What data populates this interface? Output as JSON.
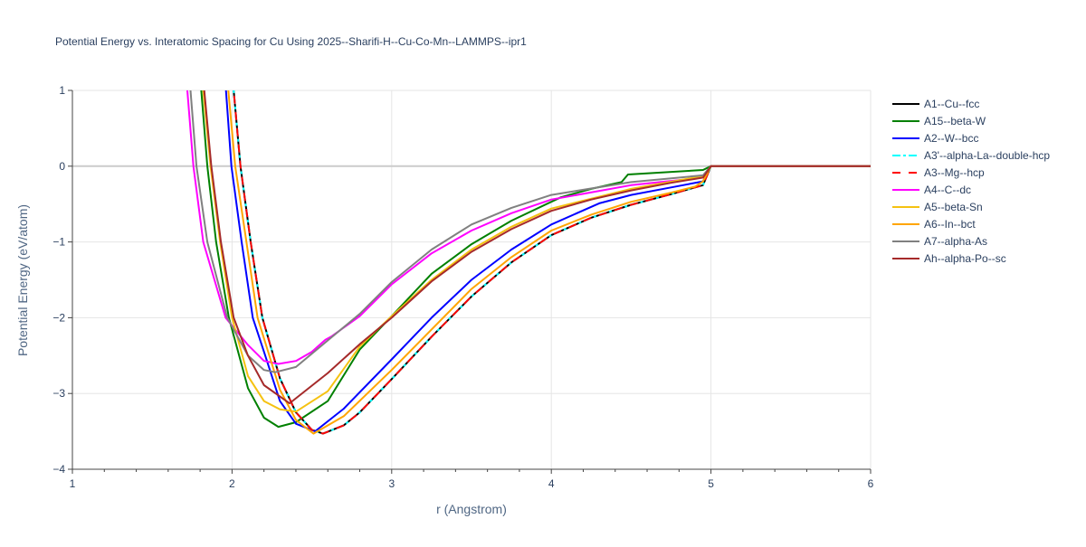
{
  "chart_data": {
    "type": "line",
    "title": "Potential Energy vs. Interatomic Spacing for Cu Using 2025--Sharifi-H--Cu-Co-Mn--LAMMPS--ipr1",
    "xlabel": "r (Angstrom)",
    "ylabel": "Potential Energy (eV/atom)",
    "xlim": [
      1,
      6
    ],
    "ylim": [
      -4,
      1
    ],
    "xticks": [
      1,
      2,
      3,
      4,
      5,
      6
    ],
    "yticks": [
      1,
      0,
      -1,
      -2,
      -3,
      -4
    ],
    "grid": true,
    "legend_position": "right",
    "series": [
      {
        "name": "A1--Cu--fcc",
        "color": "#000000",
        "dash": "solid",
        "points": [
          [
            1.97,
            2
          ],
          [
            2.01,
            1
          ],
          [
            2.053,
            0
          ],
          [
            2.117,
            -1
          ],
          [
            2.19,
            -2
          ],
          [
            2.3,
            -2.8
          ],
          [
            2.4,
            -3.25
          ],
          [
            2.5,
            -3.48
          ],
          [
            2.57,
            -3.53
          ],
          [
            2.7,
            -3.42
          ],
          [
            2.8,
            -3.25
          ],
          [
            3.0,
            -2.81
          ],
          [
            3.25,
            -2.25
          ],
          [
            3.5,
            -1.72
          ],
          [
            3.75,
            -1.27
          ],
          [
            4.0,
            -0.91
          ],
          [
            4.25,
            -0.68
          ],
          [
            4.5,
            -0.51
          ],
          [
            4.75,
            -0.37
          ],
          [
            4.95,
            -0.25
          ],
          [
            5.0,
            0
          ],
          [
            6.0,
            0
          ]
        ]
      },
      {
        "name": "A15--beta-W",
        "color": "#008000",
        "dash": "solid",
        "points": [
          [
            1.78,
            2
          ],
          [
            1.807,
            1
          ],
          [
            1.845,
            0
          ],
          [
            1.9,
            -1
          ],
          [
            1.98,
            -2
          ],
          [
            2.1,
            -2.93
          ],
          [
            2.2,
            -3.32
          ],
          [
            2.29,
            -3.44
          ],
          [
            2.4,
            -3.38
          ],
          [
            2.6,
            -3.1
          ],
          [
            2.8,
            -2.42
          ],
          [
            3.0,
            -1.98
          ],
          [
            3.25,
            -1.42
          ],
          [
            3.5,
            -1.03
          ],
          [
            3.75,
            -0.72
          ],
          [
            4.0,
            -0.47
          ],
          [
            4.06,
            -0.41
          ],
          [
            4.25,
            -0.3
          ],
          [
            4.44,
            -0.21
          ],
          [
            4.48,
            -0.11
          ],
          [
            4.95,
            -0.05
          ],
          [
            5.0,
            0
          ],
          [
            6.0,
            0
          ]
        ]
      },
      {
        "name": "A2--W--bcc",
        "color": "#0000ff",
        "dash": "solid",
        "points": [
          [
            1.93,
            2
          ],
          [
            1.962,
            1
          ],
          [
            1.996,
            0
          ],
          [
            2.06,
            -1
          ],
          [
            2.13,
            -2
          ],
          [
            2.2,
            -2.45
          ],
          [
            2.3,
            -3.1
          ],
          [
            2.4,
            -3.4
          ],
          [
            2.52,
            -3.5
          ],
          [
            2.7,
            -3.2
          ],
          [
            3.0,
            -2.55
          ],
          [
            3.25,
            -2.0
          ],
          [
            3.5,
            -1.5
          ],
          [
            3.75,
            -1.1
          ],
          [
            4.0,
            -0.77
          ],
          [
            4.3,
            -0.49
          ],
          [
            4.5,
            -0.38
          ],
          [
            4.75,
            -0.28
          ],
          [
            4.95,
            -0.2
          ],
          [
            5.0,
            0
          ],
          [
            6.0,
            0
          ]
        ]
      },
      {
        "name": "A3'--alpha-La--double-hcp",
        "color": "#00ffff",
        "dash": "dashdot",
        "points": [
          [
            1.97,
            2
          ],
          [
            2.01,
            1
          ],
          [
            2.053,
            0
          ],
          [
            2.117,
            -1
          ],
          [
            2.19,
            -2
          ],
          [
            2.3,
            -2.8
          ],
          [
            2.4,
            -3.25
          ],
          [
            2.5,
            -3.48
          ],
          [
            2.57,
            -3.53
          ],
          [
            2.7,
            -3.42
          ],
          [
            2.8,
            -3.25
          ],
          [
            3.0,
            -2.81
          ],
          [
            3.25,
            -2.25
          ],
          [
            3.5,
            -1.72
          ],
          [
            3.75,
            -1.27
          ],
          [
            4.0,
            -0.91
          ],
          [
            4.25,
            -0.68
          ],
          [
            4.5,
            -0.51
          ],
          [
            4.75,
            -0.37
          ],
          [
            4.95,
            -0.25
          ],
          [
            5.0,
            0
          ],
          [
            6.0,
            0
          ]
        ]
      },
      {
        "name": "A3--Mg--hcp",
        "color": "#ff0000",
        "dash": "dash",
        "points": [
          [
            1.97,
            2
          ],
          [
            2.01,
            1
          ],
          [
            2.053,
            0
          ],
          [
            2.117,
            -1
          ],
          [
            2.19,
            -2
          ],
          [
            2.3,
            -2.8
          ],
          [
            2.4,
            -3.25
          ],
          [
            2.5,
            -3.48
          ],
          [
            2.57,
            -3.53
          ],
          [
            2.7,
            -3.42
          ],
          [
            2.8,
            -3.25
          ],
          [
            3.0,
            -2.81
          ],
          [
            3.25,
            -2.25
          ],
          [
            3.5,
            -1.72
          ],
          [
            3.75,
            -1.27
          ],
          [
            4.0,
            -0.91
          ],
          [
            4.25,
            -0.68
          ],
          [
            4.5,
            -0.51
          ],
          [
            4.75,
            -0.37
          ],
          [
            4.95,
            -0.25
          ],
          [
            5.0,
            0
          ],
          [
            6.0,
            0
          ]
        ]
      },
      {
        "name": "A4--C--dc",
        "color": "#ff00ff",
        "dash": "solid",
        "points": [
          [
            1.69,
            2
          ],
          [
            1.72,
            1
          ],
          [
            1.758,
            0
          ],
          [
            1.82,
            -1
          ],
          [
            1.96,
            -2
          ],
          [
            2.1,
            -2.36
          ],
          [
            2.2,
            -2.57
          ],
          [
            2.29,
            -2.61
          ],
          [
            2.4,
            -2.57
          ],
          [
            2.5,
            -2.45
          ],
          [
            2.585,
            -2.29
          ],
          [
            2.62,
            -2.25
          ],
          [
            2.8,
            -1.98
          ],
          [
            3.0,
            -1.56
          ],
          [
            3.25,
            -1.15
          ],
          [
            3.5,
            -0.85
          ],
          [
            3.75,
            -0.62
          ],
          [
            4.0,
            -0.44
          ],
          [
            4.5,
            -0.25
          ],
          [
            4.95,
            -0.15
          ],
          [
            5.0,
            0
          ],
          [
            6.0,
            0
          ]
        ]
      },
      {
        "name": "A5--beta-Sn",
        "color": "#f5c211",
        "dash": "solid",
        "points": [
          [
            1.8,
            2
          ],
          [
            1.82,
            1
          ],
          [
            1.865,
            0
          ],
          [
            1.925,
            -1
          ],
          [
            2.0,
            -2
          ],
          [
            2.1,
            -2.77
          ],
          [
            2.2,
            -3.1
          ],
          [
            2.3,
            -3.21
          ],
          [
            2.4,
            -3.24
          ],
          [
            2.6,
            -2.97
          ],
          [
            2.8,
            -2.38
          ],
          [
            3.0,
            -1.98
          ],
          [
            3.25,
            -1.5
          ],
          [
            3.5,
            -1.1
          ],
          [
            3.75,
            -0.8
          ],
          [
            4.0,
            -0.56
          ],
          [
            4.5,
            -0.3
          ],
          [
            4.95,
            -0.13
          ],
          [
            5.0,
            0
          ],
          [
            6.0,
            0
          ]
        ]
      },
      {
        "name": "A6--In--bct",
        "color": "#ffa500",
        "dash": "solid",
        "points": [
          [
            1.945,
            2
          ],
          [
            1.977,
            1
          ],
          [
            2.02,
            0
          ],
          [
            2.09,
            -1
          ],
          [
            2.16,
            -2
          ],
          [
            2.3,
            -2.95
          ],
          [
            2.4,
            -3.35
          ],
          [
            2.51,
            -3.53
          ],
          [
            2.7,
            -3.3
          ],
          [
            3.0,
            -2.69
          ],
          [
            3.5,
            -1.62
          ],
          [
            3.75,
            -1.2
          ],
          [
            4.0,
            -0.85
          ],
          [
            4.25,
            -0.64
          ],
          [
            4.5,
            -0.47
          ],
          [
            4.75,
            -0.35
          ],
          [
            4.9,
            -0.27
          ],
          [
            4.95,
            -0.2
          ],
          [
            5.0,
            0
          ],
          [
            6.0,
            0
          ]
        ]
      },
      {
        "name": "A7--alpha-As",
        "color": "#808080",
        "dash": "solid",
        "points": [
          [
            1.71,
            2
          ],
          [
            1.74,
            1
          ],
          [
            1.777,
            0
          ],
          [
            1.845,
            -1
          ],
          [
            1.97,
            -2
          ],
          [
            2.1,
            -2.5
          ],
          [
            2.2,
            -2.69
          ],
          [
            2.27,
            -2.72
          ],
          [
            2.4,
            -2.65
          ],
          [
            2.6,
            -2.3
          ],
          [
            2.8,
            -1.95
          ],
          [
            3.0,
            -1.53
          ],
          [
            3.25,
            -1.1
          ],
          [
            3.5,
            -0.77
          ],
          [
            3.75,
            -0.55
          ],
          [
            4.0,
            -0.38
          ],
          [
            4.5,
            -0.21
          ],
          [
            4.95,
            -0.12
          ],
          [
            5.0,
            0
          ],
          [
            6.0,
            0
          ]
        ]
      },
      {
        "name": "Ah--alpha-Po--sc",
        "color": "#a52a2a",
        "dash": "solid",
        "points": [
          [
            1.8,
            2
          ],
          [
            1.826,
            1
          ],
          [
            1.87,
            0
          ],
          [
            1.93,
            -1
          ],
          [
            2.01,
            -2
          ],
          [
            2.1,
            -2.5
          ],
          [
            2.2,
            -2.89
          ],
          [
            2.36,
            -3.13
          ],
          [
            2.6,
            -2.73
          ],
          [
            2.8,
            -2.35
          ],
          [
            3.0,
            -2.0
          ],
          [
            3.25,
            -1.52
          ],
          [
            3.5,
            -1.13
          ],
          [
            3.75,
            -0.83
          ],
          [
            4.0,
            -0.59
          ],
          [
            4.25,
            -0.44
          ],
          [
            4.5,
            -0.32
          ],
          [
            4.75,
            -0.22
          ],
          [
            4.95,
            -0.15
          ],
          [
            5.0,
            0
          ],
          [
            6.0,
            0
          ]
        ]
      }
    ]
  }
}
